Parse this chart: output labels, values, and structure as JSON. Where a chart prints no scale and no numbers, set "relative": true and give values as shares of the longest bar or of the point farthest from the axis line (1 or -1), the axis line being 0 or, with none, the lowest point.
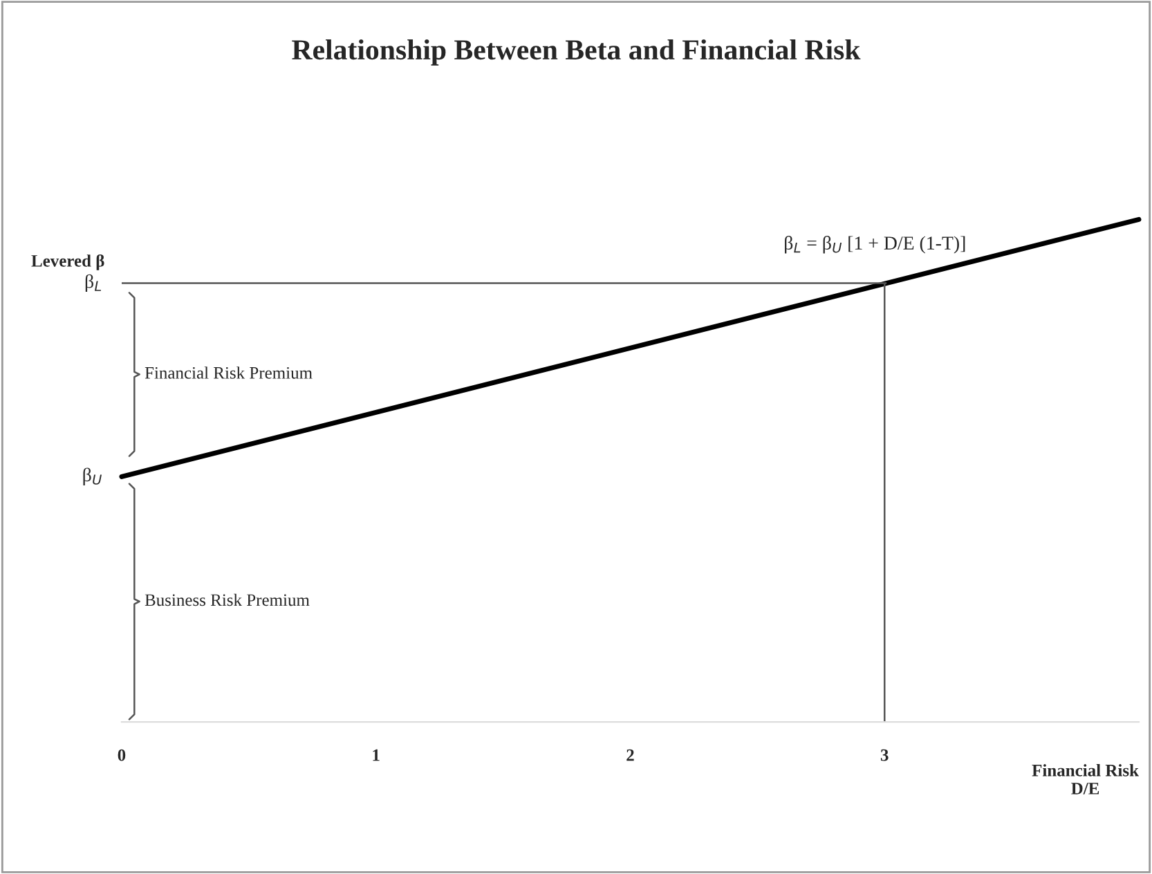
{
  "chart_data": {
    "type": "line",
    "title": "Relationship Between Beta and Financial Risk",
    "ylabel": "Levered β",
    "relative": true,
    "xlim": [
      0,
      4
    ],
    "xticks": [
      0,
      1,
      2,
      3
    ],
    "series": [
      {
        "x": [
          0,
          4
        ],
        "values": [
          0.488,
          1
        ],
        "color": "#000000"
      }
    ],
    "ref_lines": [
      {
        "axis": "y",
        "value": 0.873,
        "color": "#555555",
        "label": "β$_{L}$"
      },
      {
        "axis": "x",
        "value": 3,
        "color": "#555555"
      }
    ],
    "annotations": [
      "β$_{U}$",
      {
        "text": "β$_{L}$ = β$_{U}$ [1 + D/E (1-T)]",
        "x": 3,
        "y": 0.873
      },
      "Financial Risk Premium",
      "Business Risk Premium",
      "Financial Risk\nD/E"
    ],
    "grid": false,
    "legend": false
  }
}
